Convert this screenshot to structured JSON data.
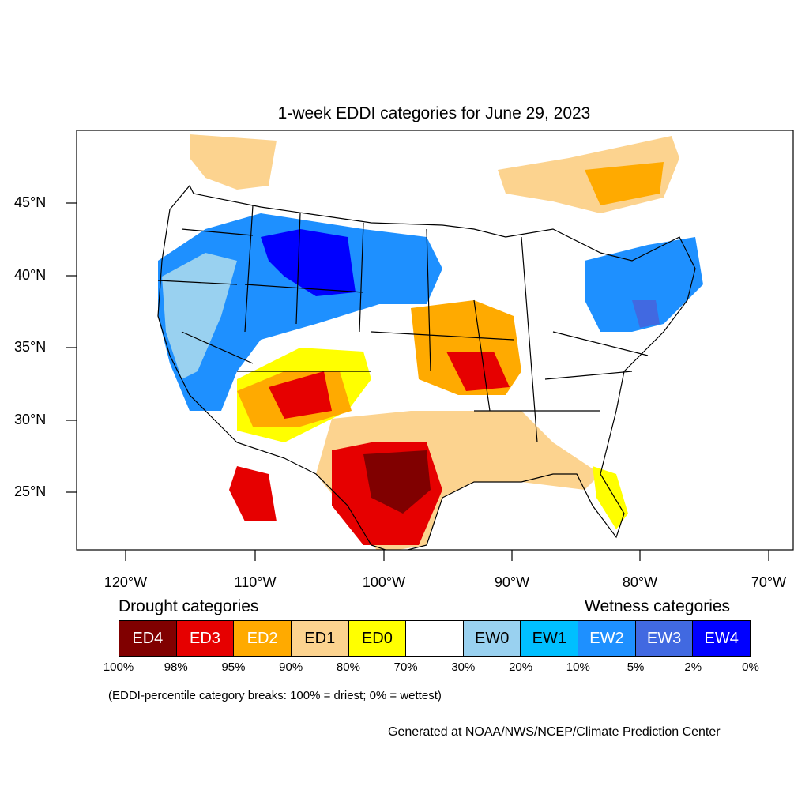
{
  "title": "1-week EDDI categories for June 29, 2023",
  "map": {
    "latitude_labels": [
      "45°N",
      "40°N",
      "35°N",
      "30°N",
      "25°N"
    ],
    "longitude_labels": [
      "120°W",
      "110°W",
      "100°W",
      "90°W",
      "80°W",
      "70°W"
    ]
  },
  "legend": {
    "drought_heading": "Drought categories",
    "wetness_heading": "Wetness categories",
    "categories": [
      {
        "label": "ED4",
        "color": "#800000",
        "text_color": "#ffffff"
      },
      {
        "label": "ED3",
        "color": "#e60000",
        "text_color": "#ffffff"
      },
      {
        "label": "ED2",
        "color": "#ffaa00",
        "text_color": "#ffffff"
      },
      {
        "label": "ED1",
        "color": "#fcd38f",
        "text_color": "#000000"
      },
      {
        "label": "ED0",
        "color": "#ffff00",
        "text_color": "#000000"
      },
      {
        "label": "",
        "color": "#ffffff",
        "text_color": "#000000"
      },
      {
        "label": "EW0",
        "color": "#99d1f0",
        "text_color": "#000000"
      },
      {
        "label": "EW1",
        "color": "#00bfff",
        "text_color": "#000000"
      },
      {
        "label": "EW2",
        "color": "#1e90ff",
        "text_color": "#ffffff"
      },
      {
        "label": "EW3",
        "color": "#4169e1",
        "text_color": "#ffffff"
      },
      {
        "label": "EW4",
        "color": "#0000ff",
        "text_color": "#ffffff"
      }
    ],
    "breaks": [
      "100%",
      "98%",
      "95%",
      "90%",
      "80%",
      "70%",
      "30%",
      "20%",
      "10%",
      "5%",
      "2%",
      "0%"
    ],
    "note": "(EDDI-percentile category breaks: 100% = driest; 0% = wettest)"
  },
  "credit": "Generated at NOAA/NWS/NCEP/Climate Prediction Center"
}
